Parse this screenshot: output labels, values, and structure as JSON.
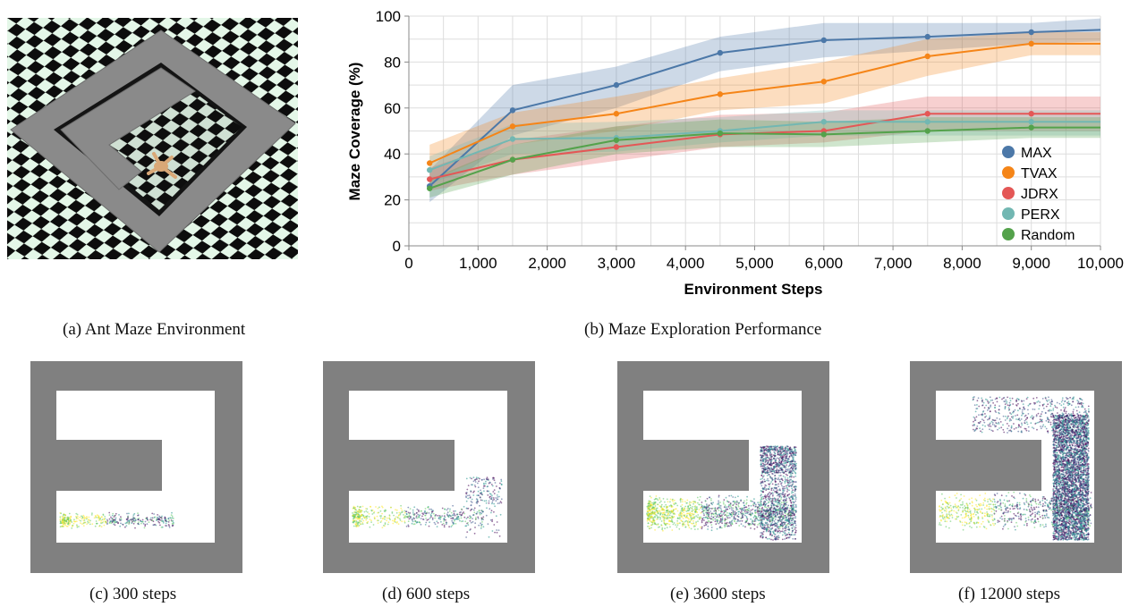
{
  "panels": {
    "a": {
      "caption": "(a) Ant Maze Environment"
    },
    "b": {
      "caption": "(b) Maze Exploration Performance"
    },
    "c": {
      "caption": "(c) 300 steps"
    },
    "d": {
      "caption": "(d) 600 steps"
    },
    "e": {
      "caption": "(e) 3600 steps"
    },
    "f": {
      "caption": "(f) 12000 steps"
    }
  },
  "chart_data": {
    "type": "line",
    "title": "",
    "xlabel": "Environment Steps",
    "ylabel": "Maze Coverage (%)",
    "xlim": [
      0,
      10000
    ],
    "ylim": [
      0,
      100
    ],
    "x_ticks": [
      0,
      1000,
      2000,
      3000,
      4000,
      5000,
      6000,
      7000,
      8000,
      9000,
      10000
    ],
    "x_tick_labels": [
      "0",
      "1,000",
      "2,000",
      "3,000",
      "4,000",
      "5,000",
      "6,000",
      "7,000",
      "8,000",
      "9,000",
      "10,000"
    ],
    "y_ticks": [
      0,
      20,
      40,
      60,
      80,
      100
    ],
    "y_tick_labels": [
      "0",
      "20",
      "40",
      "60",
      "80",
      "100"
    ],
    "grid": true,
    "legend_position": "bottom-right",
    "x": [
      300,
      1500,
      3000,
      4500,
      6000,
      7500,
      9000,
      10000
    ],
    "series": [
      {
        "name": "MAX",
        "color": "#4c78a8",
        "values": [
          26,
          59,
          70,
          84,
          89.5,
          91,
          93,
          94
        ],
        "lower": [
          19,
          48,
          60,
          76,
          82,
          85,
          88,
          89
        ],
        "upper": [
          33,
          70,
          78,
          91,
          97,
          97,
          97,
          99
        ]
      },
      {
        "name": "TVAX",
        "color": "#f58518",
        "values": [
          36,
          52,
          57.5,
          66,
          71.5,
          82.5,
          88,
          88
        ],
        "lower": [
          28,
          44,
          50,
          59,
          62,
          74,
          83,
          83
        ],
        "upper": [
          44,
          58,
          65,
          73,
          80,
          90,
          93,
          93
        ]
      },
      {
        "name": "JDRX",
        "color": "#e45756",
        "values": [
          29,
          37.5,
          43,
          48.5,
          50,
          57.5,
          57.5,
          57.5
        ],
        "lower": [
          24,
          31,
          37,
          43,
          45,
          50,
          50,
          50
        ],
        "upper": [
          34,
          46,
          52,
          57,
          58,
          65,
          65,
          65
        ]
      },
      {
        "name": "PERX",
        "color": "#72b7b2",
        "values": [
          33,
          46.5,
          47,
          50,
          54,
          54,
          54,
          54
        ],
        "lower": [
          27,
          40,
          41,
          45,
          48,
          48,
          48,
          48
        ],
        "upper": [
          39,
          53,
          54,
          56,
          59,
          59,
          59,
          59
        ]
      },
      {
        "name": "Random",
        "color": "#54a24b",
        "values": [
          25,
          37.5,
          46,
          49,
          48.5,
          50,
          51.5,
          51.5
        ],
        "lower": [
          21,
          31,
          40,
          43,
          43,
          45,
          47,
          47
        ],
        "upper": [
          29,
          44,
          52,
          55,
          54,
          56,
          56,
          56
        ]
      }
    ]
  }
}
